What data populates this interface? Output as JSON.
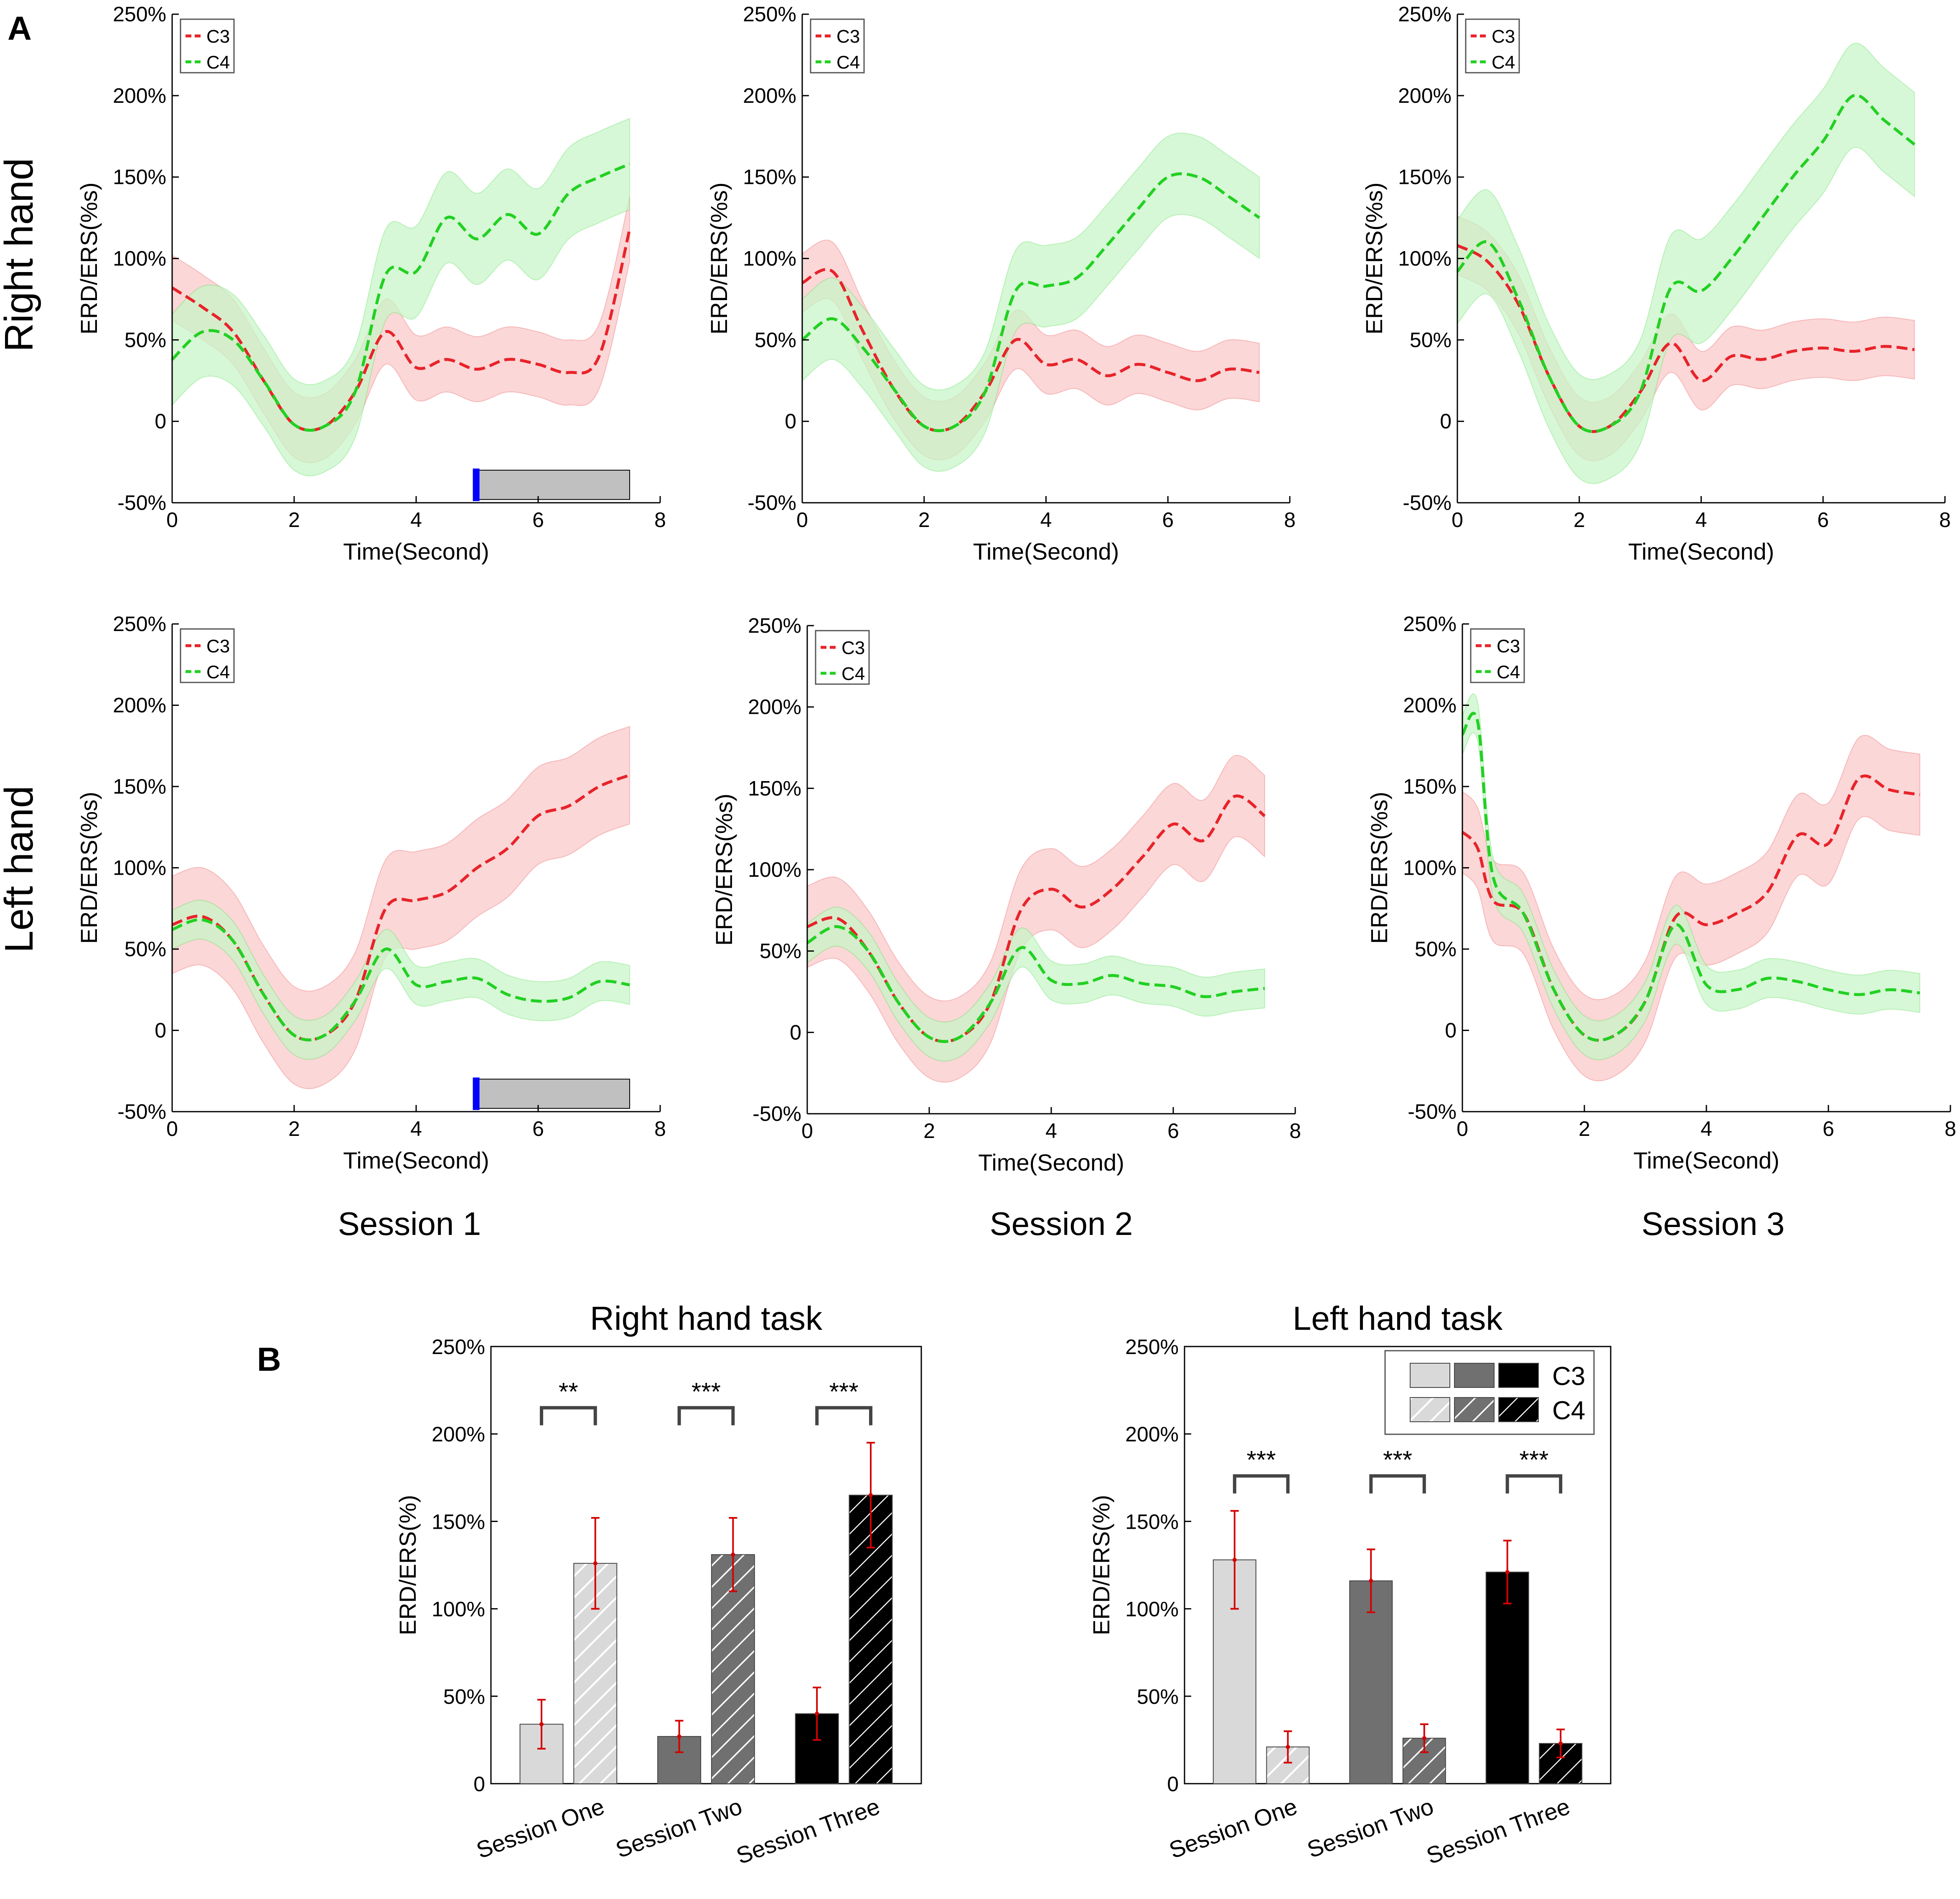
{
  "panel_a": {
    "letter": "A",
    "row_labels": [
      "Right hand",
      "Left hand"
    ],
    "session_labels": [
      "Session 1",
      "Session 2",
      "Session 3"
    ]
  },
  "panel_b": {
    "letter": "B",
    "legend": {
      "c3": "C3",
      "c4": "C4"
    }
  },
  "colors": {
    "c3_line": "#e8232a",
    "c3_fill": "#f9c8c8",
    "c4_line": "#22d022",
    "c4_fill": "#c6f5c6",
    "session1": "#d9d9d9",
    "session2": "#707070",
    "session3": "#000000",
    "errorbar": "#d40000",
    "cue_black": "#000000",
    "cue_blue": "#0000ff",
    "task_gray": "#c0c0c0"
  },
  "chart_data": [
    {
      "type": "line",
      "id": "right-s1",
      "title": "",
      "xlabel": "Time(Second)",
      "ylabel": "ERD/ERS(%s)",
      "xlim": [
        0,
        8
      ],
      "ylim": [
        -50,
        250
      ],
      "xticks": [
        0,
        2,
        4,
        6,
        8
      ],
      "yticks": [
        "-50%",
        "0",
        "50%",
        "100%",
        "150%",
        "200%",
        "250%"
      ],
      "legend": [
        "C3",
        "C4"
      ],
      "cue_markers": true,
      "x": [
        0,
        0.5,
        1,
        1.5,
        2,
        2.5,
        3,
        3.5,
        4,
        4.5,
        5,
        5.5,
        6,
        6.5,
        7,
        7.5
      ],
      "series": [
        {
          "name": "C3",
          "values": [
            82,
            70,
            55,
            25,
            -2,
            -3,
            18,
            55,
            33,
            38,
            32,
            38,
            35,
            30,
            40,
            118
          ],
          "band": 20
        },
        {
          "name": "C4",
          "values": [
            38,
            55,
            50,
            25,
            -2,
            -3,
            18,
            90,
            92,
            125,
            112,
            127,
            115,
            140,
            150,
            158
          ],
          "band": 28
        }
      ]
    },
    {
      "type": "line",
      "id": "right-s2",
      "title": "",
      "xlabel": "Time(Second)",
      "ylabel": "ERD/ERS(%s)",
      "xlim": [
        0,
        8
      ],
      "ylim": [
        -50,
        250
      ],
      "xticks": [
        0,
        2,
        4,
        6,
        8
      ],
      "yticks": [
        "-50%",
        "0",
        "50%",
        "100%",
        "150%",
        "200%",
        "250%"
      ],
      "legend": [
        "C3",
        "C4"
      ],
      "cue_markers": false,
      "x": [
        0,
        0.5,
        1,
        1.5,
        2,
        2.5,
        3,
        3.5,
        4,
        4.5,
        5,
        5.5,
        6,
        6.5,
        7,
        7.5
      ],
      "series": [
        {
          "name": "C3",
          "values": [
            85,
            92,
            55,
            20,
            -3,
            -3,
            18,
            50,
            35,
            38,
            28,
            35,
            30,
            25,
            32,
            30
          ],
          "band": 18
        },
        {
          "name": "C4",
          "values": [
            50,
            63,
            45,
            20,
            -3,
            -3,
            18,
            80,
            83,
            88,
            108,
            130,
            150,
            150,
            138,
            125
          ],
          "band": 25
        }
      ]
    },
    {
      "type": "line",
      "id": "right-s3",
      "title": "",
      "xlabel": "Time(Second)",
      "ylabel": "ERD/ERS(%s)",
      "xlim": [
        0,
        8
      ],
      "ylim": [
        -50,
        250
      ],
      "xticks": [
        0,
        2,
        4,
        6,
        8
      ],
      "yticks": [
        "-50%",
        "0",
        "50%",
        "100%",
        "150%",
        "200%",
        "250%"
      ],
      "legend": [
        "C3",
        "C4"
      ],
      "cue_markers": false,
      "x": [
        0,
        0.5,
        1,
        1.5,
        2,
        2.5,
        3,
        3.5,
        4,
        4.5,
        5,
        5.5,
        6,
        6.5,
        7,
        7.5
      ],
      "series": [
        {
          "name": "C3",
          "values": [
            108,
            98,
            72,
            28,
            -3,
            -3,
            18,
            48,
            25,
            40,
            38,
            43,
            45,
            43,
            46,
            44
          ],
          "band": 18
        },
        {
          "name": "C4",
          "values": [
            92,
            110,
            75,
            28,
            -3,
            -3,
            18,
            82,
            80,
            100,
            125,
            150,
            172,
            200,
            185,
            170
          ],
          "band": 32
        }
      ]
    },
    {
      "type": "line",
      "id": "left-s1",
      "title": "",
      "xlabel": "Time(Second)",
      "ylabel": "ERD/ERS(%s)",
      "xlim": [
        0,
        8
      ],
      "ylim": [
        -50,
        250
      ],
      "xticks": [
        0,
        2,
        4,
        6,
        8
      ],
      "yticks": [
        "-50%",
        "0",
        "50%",
        "100%",
        "150%",
        "200%",
        "250%"
      ],
      "legend": [
        "C3",
        "C4"
      ],
      "cue_markers": true,
      "x": [
        0,
        0.5,
        1,
        1.5,
        2,
        2.5,
        3,
        3.5,
        4,
        4.5,
        5,
        5.5,
        6,
        6.5,
        7,
        7.5
      ],
      "series": [
        {
          "name": "C3",
          "values": [
            65,
            70,
            55,
            22,
            -3,
            -3,
            18,
            75,
            80,
            85,
            100,
            112,
            132,
            138,
            150,
            157
          ],
          "band": 30
        },
        {
          "name": "C4",
          "values": [
            62,
            68,
            55,
            22,
            -3,
            -3,
            18,
            50,
            28,
            30,
            32,
            22,
            18,
            20,
            30,
            28
          ],
          "band": 12
        }
      ]
    },
    {
      "type": "line",
      "id": "left-s2",
      "title": "",
      "xlabel": "Time(Second)",
      "ylabel": "ERD/ERS(%s)",
      "xlim": [
        0,
        8
      ],
      "ylim": [
        -50,
        250
      ],
      "xticks": [
        0,
        2,
        4,
        6,
        8
      ],
      "yticks": [
        "-50%",
        "0",
        "50%",
        "100%",
        "150%",
        "200%",
        "250%"
      ],
      "legend": [
        "C3",
        "C4"
      ],
      "cue_markers": false,
      "x": [
        0,
        0.5,
        1,
        1.5,
        2,
        2.5,
        3,
        3.5,
        4,
        4.5,
        5,
        5.5,
        6,
        6.5,
        7,
        7.5
      ],
      "series": [
        {
          "name": "C3",
          "values": [
            65,
            70,
            50,
            18,
            -3,
            -3,
            18,
            75,
            88,
            77,
            88,
            108,
            128,
            118,
            145,
            133
          ],
          "band": 25
        },
        {
          "name": "C4",
          "values": [
            55,
            65,
            50,
            18,
            -3,
            -3,
            18,
            52,
            32,
            30,
            35,
            30,
            28,
            22,
            25,
            27
          ],
          "band": 12
        }
      ]
    },
    {
      "type": "line",
      "id": "left-s3",
      "title": "",
      "xlabel": "Time(Second)",
      "ylabel": "ERD/ERS(%s)",
      "xlim": [
        0,
        8
      ],
      "ylim": [
        -50,
        250
      ],
      "xticks": [
        0,
        2,
        4,
        6,
        8
      ],
      "yticks": [
        "-50%",
        "0",
        "50%",
        "100%",
        "150%",
        "200%",
        "250%"
      ],
      "legend": [
        "C3",
        "C4"
      ],
      "cue_markers": false,
      "x": [
        0,
        0.25,
        0.5,
        1,
        1.5,
        2,
        2.5,
        3,
        3.5,
        4,
        4.5,
        5,
        5.5,
        6,
        6.5,
        7,
        7.5
      ],
      "series": [
        {
          "name": "C3",
          "values": [
            122,
            112,
            80,
            72,
            25,
            -3,
            -3,
            18,
            70,
            65,
            72,
            85,
            120,
            115,
            155,
            148,
            145
          ],
          "band": 25
        },
        {
          "name": "C4",
          "values": [
            182,
            190,
            95,
            72,
            25,
            -3,
            -3,
            18,
            65,
            28,
            25,
            32,
            30,
            25,
            22,
            25,
            23
          ],
          "band": 12
        }
      ]
    },
    {
      "type": "bar",
      "id": "right-task",
      "title": "Right hand task",
      "xlabel": "",
      "ylabel": "ERD/ERS(%)",
      "ylim": [
        0,
        250
      ],
      "yticks": [
        "0",
        "50%",
        "100%",
        "150%",
        "200%",
        "250%"
      ],
      "categories": [
        "Session One",
        "Session Two",
        "Session Three"
      ],
      "series": [
        {
          "name": "C3",
          "values": [
            34,
            27,
            40
          ],
          "errors": [
            14,
            9,
            15
          ]
        },
        {
          "name": "C4",
          "values": [
            126,
            131,
            165
          ],
          "errors": [
            26,
            21,
            30
          ]
        }
      ],
      "significance": [
        "**",
        "***",
        "***"
      ],
      "sig_level": 215
    },
    {
      "type": "bar",
      "id": "left-task",
      "title": "Left hand task",
      "xlabel": "",
      "ylabel": "ERD/ERS(%)",
      "ylim": [
        0,
        250
      ],
      "yticks": [
        "0",
        "50%",
        "100%",
        "150%",
        "200%",
        "250%"
      ],
      "categories": [
        "Session One",
        "Session Two",
        "Session Three"
      ],
      "series": [
        {
          "name": "C3",
          "values": [
            128,
            116,
            121
          ],
          "errors": [
            28,
            18,
            18
          ]
        },
        {
          "name": "C4",
          "values": [
            21,
            26,
            23
          ],
          "errors": [
            9,
            8,
            8
          ]
        }
      ],
      "significance": [
        "***",
        "***",
        "***"
      ],
      "sig_level": 176
    }
  ]
}
